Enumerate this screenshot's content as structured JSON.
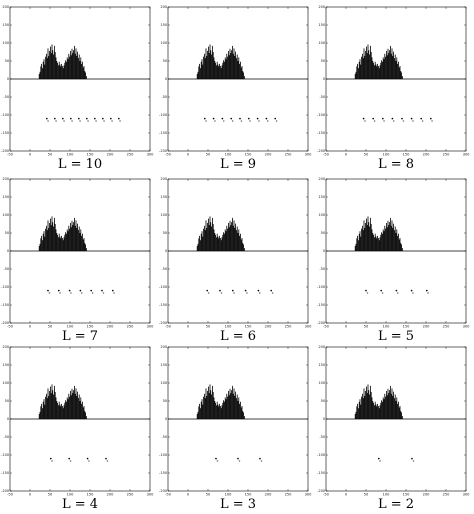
{
  "figure": {
    "panel_captions": [
      "L = 10",
      "L = 9",
      "L = 8",
      "L = 7",
      "L = 6",
      "L = 5",
      "L = 4",
      "L = 3",
      "L = 2"
    ]
  },
  "chart_data": [
    {
      "type": "bar",
      "title": "",
      "xlabel": "",
      "ylabel": "",
      "grid": false,
      "caption": "L = 10",
      "xlim": [
        -50,
        300
      ],
      "ylim": [
        -200,
        200
      ],
      "xticks": [
        "-50",
        "0",
        "50",
        "100",
        "150",
        "200",
        "250",
        "300"
      ],
      "yticks": [
        "200",
        "150",
        "100",
        "50",
        "0",
        "-50",
        "-100",
        "-150",
        "-200"
      ],
      "histogram": {
        "bin_width": 2,
        "x_start": 22,
        "values": [
          14,
          20,
          35,
          42,
          30,
          48,
          55,
          40,
          62,
          70,
          58,
          85,
          64,
          78,
          90,
          72,
          96,
          80,
          68,
          92,
          75,
          60,
          50,
          45,
          38,
          48,
          40,
          35,
          42,
          36,
          30,
          38,
          45,
          52,
          48,
          60,
          55,
          70,
          62,
          78,
          66,
          84,
          72,
          80,
          92,
          70,
          85,
          64,
          76,
          58,
          68,
          50,
          60,
          42,
          48,
          32,
          36,
          22,
          18,
          8
        ]
      },
      "centroids": [
        {
          "x": 42,
          "y": -110
        },
        {
          "x": 62,
          "y": -110
        },
        {
          "x": 82,
          "y": -110
        },
        {
          "x": 102,
          "y": -110
        },
        {
          "x": 122,
          "y": -110
        },
        {
          "x": 142,
          "y": -110
        },
        {
          "x": 162,
          "y": -110
        },
        {
          "x": 182,
          "y": -110
        },
        {
          "x": 202,
          "y": -110
        },
        {
          "x": 222,
          "y": -110
        }
      ],
      "centroid_labels": [
        "c",
        "c",
        "c",
        "c",
        "c",
        "c",
        "c",
        "c",
        "c",
        "c"
      ]
    },
    {
      "type": "bar",
      "title": "",
      "xlabel": "",
      "ylabel": "",
      "grid": false,
      "caption": "L = 9",
      "xlim": [
        -50,
        300
      ],
      "ylim": [
        -200,
        200
      ],
      "xticks": [
        "-50",
        "0",
        "50",
        "100",
        "150",
        "200",
        "250",
        "300"
      ],
      "yticks": [
        "200",
        "150",
        "100",
        "50",
        "0",
        "-50",
        "-100",
        "-150",
        "-200"
      ],
      "histogram": {
        "bin_width": 2,
        "x_start": 22,
        "values": [
          14,
          20,
          35,
          42,
          30,
          48,
          55,
          40,
          62,
          70,
          58,
          85,
          64,
          78,
          90,
          72,
          96,
          80,
          68,
          92,
          75,
          60,
          50,
          45,
          38,
          48,
          40,
          35,
          42,
          36,
          30,
          38,
          45,
          52,
          48,
          60,
          55,
          70,
          62,
          78,
          66,
          84,
          72,
          80,
          92,
          70,
          85,
          64,
          76,
          58,
          68,
          50,
          60,
          42,
          48,
          32,
          36,
          22,
          18,
          8
        ]
      },
      "centroids": [
        {
          "x": 42,
          "y": -110
        },
        {
          "x": 64,
          "y": -110
        },
        {
          "x": 86,
          "y": -110
        },
        {
          "x": 108,
          "y": -110
        },
        {
          "x": 130,
          "y": -110
        },
        {
          "x": 152,
          "y": -110
        },
        {
          "x": 174,
          "y": -110
        },
        {
          "x": 196,
          "y": -110
        },
        {
          "x": 218,
          "y": -110
        }
      ],
      "centroid_labels": [
        "c",
        "c",
        "c",
        "c",
        "c",
        "c",
        "c",
        "c",
        "c"
      ]
    },
    {
      "type": "bar",
      "title": "",
      "xlabel": "",
      "ylabel": "",
      "grid": false,
      "caption": "L = 8",
      "xlim": [
        -50,
        300
      ],
      "ylim": [
        -200,
        200
      ],
      "xticks": [
        "-50",
        "0",
        "50",
        "100",
        "150",
        "200",
        "250",
        "300"
      ],
      "yticks": [
        "200",
        "150",
        "100",
        "50",
        "0",
        "-50",
        "-100",
        "-150",
        "-200"
      ],
      "histogram": {
        "bin_width": 2,
        "x_start": 22,
        "values": [
          14,
          20,
          35,
          42,
          30,
          48,
          55,
          40,
          62,
          70,
          58,
          85,
          64,
          78,
          90,
          72,
          96,
          80,
          68,
          92,
          75,
          60,
          50,
          45,
          38,
          48,
          40,
          35,
          42,
          36,
          30,
          38,
          45,
          52,
          48,
          60,
          55,
          70,
          62,
          78,
          66,
          84,
          72,
          80,
          92,
          70,
          85,
          64,
          76,
          58,
          68,
          50,
          60,
          42,
          48,
          32,
          36,
          22,
          18,
          8
        ]
      },
      "centroids": [
        {
          "x": 44,
          "y": -110
        },
        {
          "x": 68,
          "y": -110
        },
        {
          "x": 92,
          "y": -110
        },
        {
          "x": 116,
          "y": -110
        },
        {
          "x": 140,
          "y": -110
        },
        {
          "x": 164,
          "y": -110
        },
        {
          "x": 188,
          "y": -110
        },
        {
          "x": 212,
          "y": -110
        }
      ],
      "centroid_labels": [
        "c",
        "c",
        "c",
        "c",
        "c",
        "c",
        "c",
        "c"
      ]
    },
    {
      "type": "bar",
      "title": "",
      "xlabel": "",
      "ylabel": "",
      "grid": false,
      "caption": "L = 7",
      "xlim": [
        -50,
        300
      ],
      "ylim": [
        -200,
        200
      ],
      "xticks": [
        "-50",
        "0",
        "50",
        "100",
        "150",
        "200",
        "250",
        "300"
      ],
      "yticks": [
        "200",
        "150",
        "100",
        "50",
        "0",
        "-50",
        "-100",
        "-150",
        "-200"
      ],
      "histogram": {
        "bin_width": 2,
        "x_start": 22,
        "values": [
          14,
          20,
          35,
          42,
          30,
          48,
          55,
          40,
          62,
          70,
          58,
          85,
          64,
          78,
          90,
          72,
          96,
          80,
          68,
          92,
          75,
          60,
          50,
          45,
          38,
          48,
          40,
          35,
          42,
          36,
          30,
          38,
          45,
          52,
          48,
          60,
          55,
          70,
          62,
          78,
          66,
          84,
          72,
          80,
          92,
          70,
          85,
          64,
          76,
          58,
          68,
          50,
          60,
          42,
          48,
          32,
          36,
          22,
          18,
          8
        ]
      },
      "centroids": [
        {
          "x": 45,
          "y": -110
        },
        {
          "x": 72,
          "y": -110
        },
        {
          "x": 99,
          "y": -110
        },
        {
          "x": 126,
          "y": -110
        },
        {
          "x": 153,
          "y": -110
        },
        {
          "x": 180,
          "y": -110
        },
        {
          "x": 207,
          "y": -110
        }
      ],
      "centroid_labels": [
        "c",
        "c",
        "c",
        "c",
        "c",
        "c",
        "c"
      ]
    },
    {
      "type": "bar",
      "title": "",
      "xlabel": "",
      "ylabel": "",
      "grid": false,
      "caption": "L = 6",
      "xlim": [
        -50,
        300
      ],
      "ylim": [
        -200,
        200
      ],
      "xticks": [
        "-50",
        "0",
        "50",
        "100",
        "150",
        "200",
        "250",
        "300"
      ],
      "yticks": [
        "200",
        "150",
        "100",
        "50",
        "0",
        "-50",
        "-100",
        "-150",
        "-200"
      ],
      "histogram": {
        "bin_width": 2,
        "x_start": 22,
        "values": [
          14,
          20,
          35,
          42,
          30,
          48,
          55,
          40,
          62,
          70,
          58,
          85,
          64,
          78,
          90,
          72,
          96,
          80,
          68,
          92,
          75,
          60,
          50,
          45,
          38,
          48,
          40,
          35,
          42,
          36,
          30,
          38,
          45,
          52,
          48,
          60,
          55,
          70,
          62,
          78,
          66,
          84,
          72,
          80,
          92,
          70,
          85,
          64,
          76,
          58,
          68,
          50,
          60,
          42,
          48,
          32,
          36,
          22,
          18,
          8
        ]
      },
      "centroids": [
        {
          "x": 48,
          "y": -110
        },
        {
          "x": 80,
          "y": -110
        },
        {
          "x": 112,
          "y": -110
        },
        {
          "x": 144,
          "y": -110
        },
        {
          "x": 176,
          "y": -110
        },
        {
          "x": 208,
          "y": -110
        }
      ],
      "centroid_labels": [
        "c",
        "c",
        "c",
        "c",
        "c",
        "c"
      ]
    },
    {
      "type": "bar",
      "title": "",
      "xlabel": "",
      "ylabel": "",
      "grid": false,
      "caption": "L = 5",
      "xlim": [
        -50,
        300
      ],
      "ylim": [
        -200,
        200
      ],
      "xticks": [
        "-50",
        "0",
        "50",
        "100",
        "150",
        "200",
        "250",
        "300"
      ],
      "yticks": [
        "200",
        "150",
        "100",
        "50",
        "0",
        "-50",
        "-100",
        "-150",
        "-200"
      ],
      "histogram": {
        "bin_width": 2,
        "x_start": 22,
        "values": [
          14,
          20,
          35,
          42,
          30,
          48,
          55,
          40,
          62,
          70,
          58,
          85,
          64,
          78,
          90,
          72,
          96,
          80,
          68,
          92,
          75,
          60,
          50,
          45,
          38,
          48,
          40,
          35,
          42,
          36,
          30,
          38,
          45,
          52,
          48,
          60,
          55,
          70,
          62,
          78,
          66,
          84,
          72,
          80,
          92,
          70,
          85,
          64,
          76,
          58,
          68,
          50,
          60,
          42,
          48,
          32,
          36,
          22,
          18,
          8
        ]
      },
      "centroids": [
        {
          "x": 50,
          "y": -110
        },
        {
          "x": 88,
          "y": -110
        },
        {
          "x": 126,
          "y": -110
        },
        {
          "x": 164,
          "y": -110
        },
        {
          "x": 202,
          "y": -110
        }
      ],
      "centroid_labels": [
        "c",
        "c",
        "c",
        "c",
        "c"
      ]
    },
    {
      "type": "bar",
      "title": "",
      "xlabel": "",
      "ylabel": "",
      "grid": false,
      "caption": "L = 4",
      "xlim": [
        -50,
        300
      ],
      "ylim": [
        -200,
        200
      ],
      "xticks": [
        "-50",
        "0",
        "50",
        "100",
        "150",
        "200",
        "250",
        "300"
      ],
      "yticks": [
        "200",
        "150",
        "100",
        "50",
        "0",
        "-50",
        "-100",
        "-150",
        "-200"
      ],
      "histogram": {
        "bin_width": 2,
        "x_start": 22,
        "values": [
          14,
          20,
          35,
          42,
          30,
          48,
          55,
          40,
          62,
          70,
          58,
          85,
          64,
          78,
          90,
          72,
          96,
          80,
          68,
          92,
          75,
          60,
          50,
          45,
          38,
          48,
          40,
          35,
          42,
          36,
          30,
          38,
          45,
          52,
          48,
          60,
          55,
          70,
          62,
          78,
          66,
          84,
          72,
          80,
          92,
          70,
          85,
          64,
          76,
          58,
          68,
          50,
          60,
          42,
          48,
          32,
          36,
          22,
          18,
          8
        ]
      },
      "centroids": [
        {
          "x": 52,
          "y": -110
        },
        {
          "x": 98,
          "y": -110
        },
        {
          "x": 144,
          "y": -110
        },
        {
          "x": 190,
          "y": -110
        }
      ],
      "centroid_labels": [
        "c",
        "c",
        "c",
        "c"
      ]
    },
    {
      "type": "bar",
      "title": "",
      "xlabel": "",
      "ylabel": "",
      "grid": false,
      "caption": "L = 3",
      "xlim": [
        -50,
        300
      ],
      "ylim": [
        -200,
        200
      ],
      "xticks": [
        "-50",
        "0",
        "50",
        "100",
        "150",
        "200",
        "250",
        "300"
      ],
      "yticks": [
        "200",
        "150",
        "100",
        "50",
        "0",
        "-50",
        "-100",
        "-150",
        "-200"
      ],
      "histogram": {
        "bin_width": 2,
        "x_start": 22,
        "values": [
          14,
          20,
          35,
          42,
          30,
          48,
          55,
          40,
          62,
          70,
          58,
          85,
          64,
          78,
          90,
          72,
          96,
          80,
          68,
          92,
          75,
          60,
          50,
          45,
          38,
          48,
          40,
          35,
          42,
          36,
          30,
          38,
          45,
          52,
          48,
          60,
          55,
          70,
          62,
          78,
          66,
          84,
          72,
          80,
          92,
          70,
          85,
          64,
          76,
          58,
          68,
          50,
          60,
          42,
          48,
          32,
          36,
          22,
          18,
          8
        ]
      },
      "centroids": [
        {
          "x": 70,
          "y": -110
        },
        {
          "x": 125,
          "y": -110
        },
        {
          "x": 180,
          "y": -110
        }
      ],
      "centroid_labels": [
        "c",
        "c",
        "c"
      ]
    },
    {
      "type": "bar",
      "title": "",
      "xlabel": "",
      "ylabel": "",
      "grid": false,
      "caption": "L = 2",
      "xlim": [
        -50,
        300
      ],
      "ylim": [
        -200,
        200
      ],
      "xticks": [
        "-50",
        "0",
        "50",
        "100",
        "150",
        "200",
        "250",
        "300"
      ],
      "yticks": [
        "200",
        "150",
        "100",
        "50",
        "0",
        "-50",
        "-100",
        "-150",
        "-200"
      ],
      "histogram": {
        "bin_width": 2,
        "x_start": 22,
        "values": [
          14,
          20,
          35,
          42,
          30,
          48,
          55,
          40,
          62,
          70,
          58,
          85,
          64,
          78,
          90,
          72,
          96,
          80,
          68,
          92,
          75,
          60,
          50,
          45,
          38,
          48,
          40,
          35,
          42,
          36,
          30,
          38,
          45,
          52,
          48,
          60,
          55,
          70,
          62,
          78,
          66,
          84,
          72,
          80,
          92,
          70,
          85,
          64,
          76,
          58,
          68,
          50,
          60,
          42,
          48,
          32,
          36,
          22,
          18,
          8
        ]
      },
      "centroids": [
        {
          "x": 82,
          "y": -110
        },
        {
          "x": 165,
          "y": -110
        }
      ],
      "centroid_labels": [
        "c",
        "c"
      ]
    }
  ]
}
